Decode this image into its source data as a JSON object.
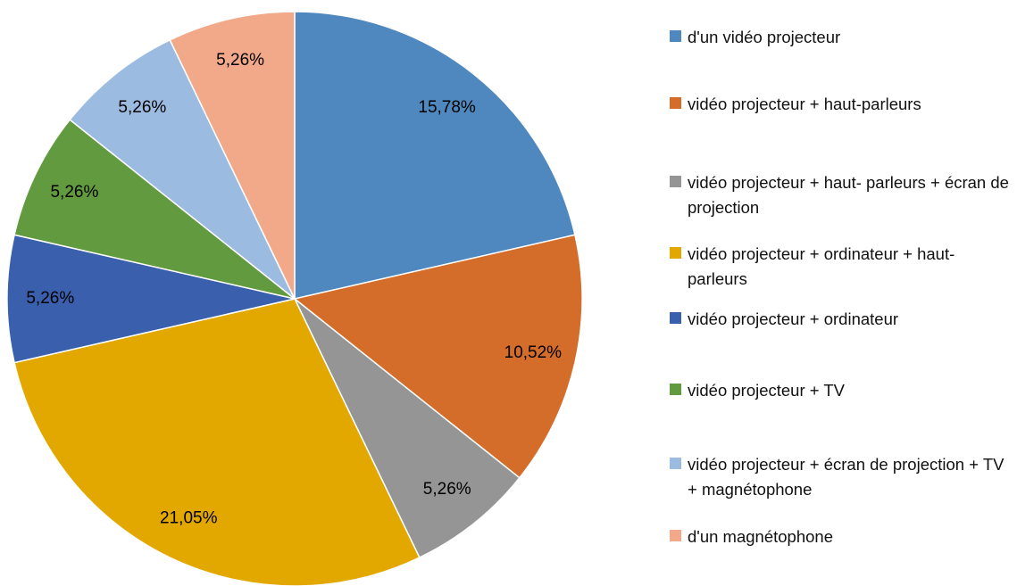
{
  "chart_data": {
    "type": "pie",
    "categories": [
      "d'un vidéo projecteur",
      "vidéo projecteur + haut-parleurs",
      "vidéo projecteur + haut- parleurs + écran de projection",
      "vidéo projecteur + ordinateur + haut-parleurs",
      "vidéo projecteur + ordinateur",
      "vidéo projecteur + TV",
      "vidéo projecteur + écran de projection + TV + magnétophone",
      "d'un magnétophone"
    ],
    "values": [
      15.78,
      10.52,
      5.26,
      21.05,
      5.26,
      5.26,
      5.26,
      5.26
    ],
    "value_labels": [
      "15,78%",
      "10,52%",
      "5,26%",
      "21,05%",
      "5,26%",
      "5,26%",
      "5,26%",
      "5,26%"
    ],
    "colors": [
      "#4f88bf",
      "#d46c2a",
      "#959595",
      "#e2a800",
      "#3a5fad",
      "#629a3f",
      "#9bbbe0",
      "#f2a98a"
    ],
    "legend": "right"
  }
}
